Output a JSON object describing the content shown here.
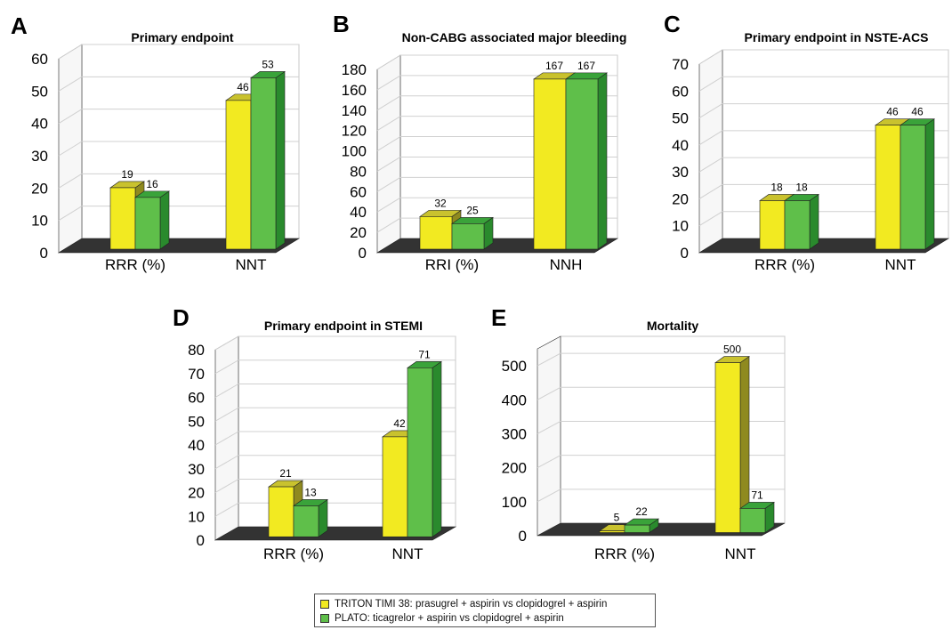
{
  "colors": {
    "series_a_front": "#f2ea21",
    "series_a_top": "#c9c22e",
    "series_a_side": "#8f8a1f",
    "series_b_front": "#5fbf4a",
    "series_b_top": "#3aa33a",
    "series_b_side": "#2a8a2d",
    "floor": "#333333"
  },
  "legend": {
    "items": [
      {
        "label": "TRITON TIMI 38: prasugrel + aspirin vs clopidogrel + aspirin",
        "color": "#f2ea21"
      },
      {
        "label": "PLATO: ticagrelor + aspirin vs clopidogrel + aspirin",
        "color": "#5fbf4a"
      }
    ]
  },
  "chart_data": [
    {
      "type": "bar",
      "panel": "A",
      "title": "Primary endpoint",
      "categories": [
        "RRR (%)",
        "NNT"
      ],
      "series": [
        {
          "values": [
            19,
            46
          ]
        },
        {
          "values": [
            16,
            53
          ]
        }
      ],
      "ylim": [
        0,
        60
      ],
      "yticks": [
        0,
        10,
        20,
        30,
        40,
        50,
        60
      ],
      "grid": true
    },
    {
      "type": "bar",
      "panel": "B",
      "title": "Non-CABG associated major bleeding",
      "categories": [
        "RRI (%)",
        "NNH"
      ],
      "series": [
        {
          "values": [
            32,
            167
          ]
        },
        {
          "values": [
            25,
            167
          ]
        }
      ],
      "ylim": [
        0,
        180
      ],
      "yticks": [
        0,
        20,
        40,
        60,
        80,
        100,
        120,
        140,
        160,
        180
      ],
      "grid": true
    },
    {
      "type": "bar",
      "panel": "C",
      "title": "Primary endpoint in NSTE-ACS",
      "categories": [
        "RRR (%)",
        "NNT"
      ],
      "series": [
        {
          "values": [
            18,
            46
          ]
        },
        {
          "values": [
            18,
            46
          ]
        }
      ],
      "ylim": [
        0,
        70
      ],
      "yticks": [
        0,
        10,
        20,
        30,
        40,
        50,
        60,
        70
      ],
      "grid": true
    },
    {
      "type": "bar",
      "panel": "D",
      "title": "Primary endpoint in STEMI",
      "categories": [
        "RRR (%)",
        "NNT"
      ],
      "series": [
        {
          "values": [
            21,
            42
          ]
        },
        {
          "values": [
            13,
            71
          ]
        }
      ],
      "ylim": [
        0,
        80
      ],
      "yticks": [
        0,
        10,
        20,
        30,
        40,
        50,
        60,
        70,
        80
      ],
      "grid": true
    },
    {
      "type": "bar",
      "panel": "E",
      "title": "Mortality",
      "categories": [
        "RRR (%)",
        "NNT"
      ],
      "series": [
        {
          "values": [
            5,
            500
          ]
        },
        {
          "values": [
            22,
            71
          ]
        }
      ],
      "ylim": [
        0,
        550
      ],
      "yticks": [
        0,
        100,
        200,
        300,
        400,
        500
      ],
      "grid": true
    }
  ]
}
